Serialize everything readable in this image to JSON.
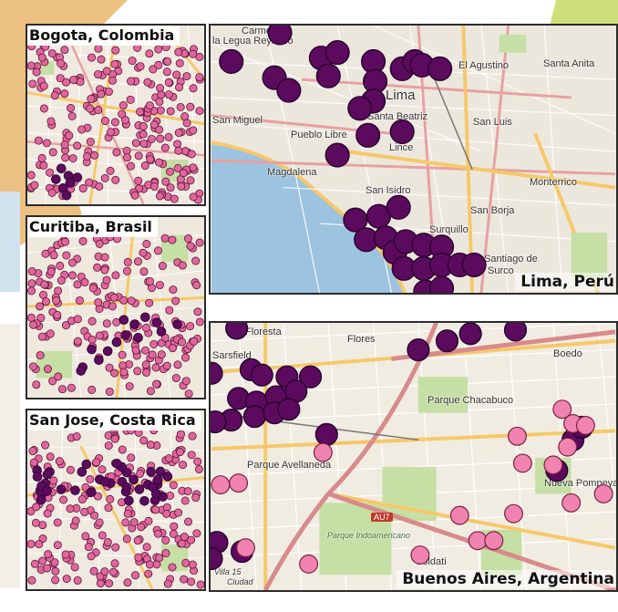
{
  "figure": {
    "colors": {
      "dark_dot": "#5c0a5e",
      "dark_dot_stroke": "#2a0230",
      "pink_dot": "#f083b0",
      "pink_dot_stroke": "#7a1e3e",
      "small_dot": "#e0679e",
      "water": "#9cc3df",
      "land": "#ece7dd",
      "road_major": "#f6c869",
      "road_arterial": "#e8a0a0",
      "park": "#c6dfa4",
      "deco_orange": "#ecc081",
      "deco_green": "#cfe07a"
    }
  },
  "panels": [
    {
      "id": "bogota",
      "label": "Bogota, Colombia",
      "place_labels": []
    },
    {
      "id": "curitiba",
      "label": "Curitiba, Brasil",
      "place_labels": []
    },
    {
      "id": "sanjose",
      "label": "San Jose, Costa Rica",
      "place_labels": []
    },
    {
      "id": "lima",
      "label": "Lima, Perú",
      "place_labels": [
        "Carmen de",
        "la Legua Reynoso",
        "San Miguel",
        "Pueblo Libre",
        "Lima",
        "Santa Beatriz",
        "Lince",
        "El Agustino",
        "Santa Anita",
        "San Luis",
        "Magdalena",
        "San Isidro",
        "Monterrico",
        "San Borja",
        "Surquillo",
        "Santiago de",
        "Surco"
      ]
    },
    {
      "id": "buenosaires",
      "label": "Buenos Aires, Argentina",
      "place_labels": [
        "Floresta",
        "Flores",
        "Boedo",
        "Sarsfield",
        "Parque Chacabuco",
        "Parque Avellaneda",
        "Nueva Pompeya",
        "Parque Indoamericano",
        "Villa 15",
        "Ciudad",
        "Soldati"
      ],
      "road_tag": "AU7"
    }
  ]
}
